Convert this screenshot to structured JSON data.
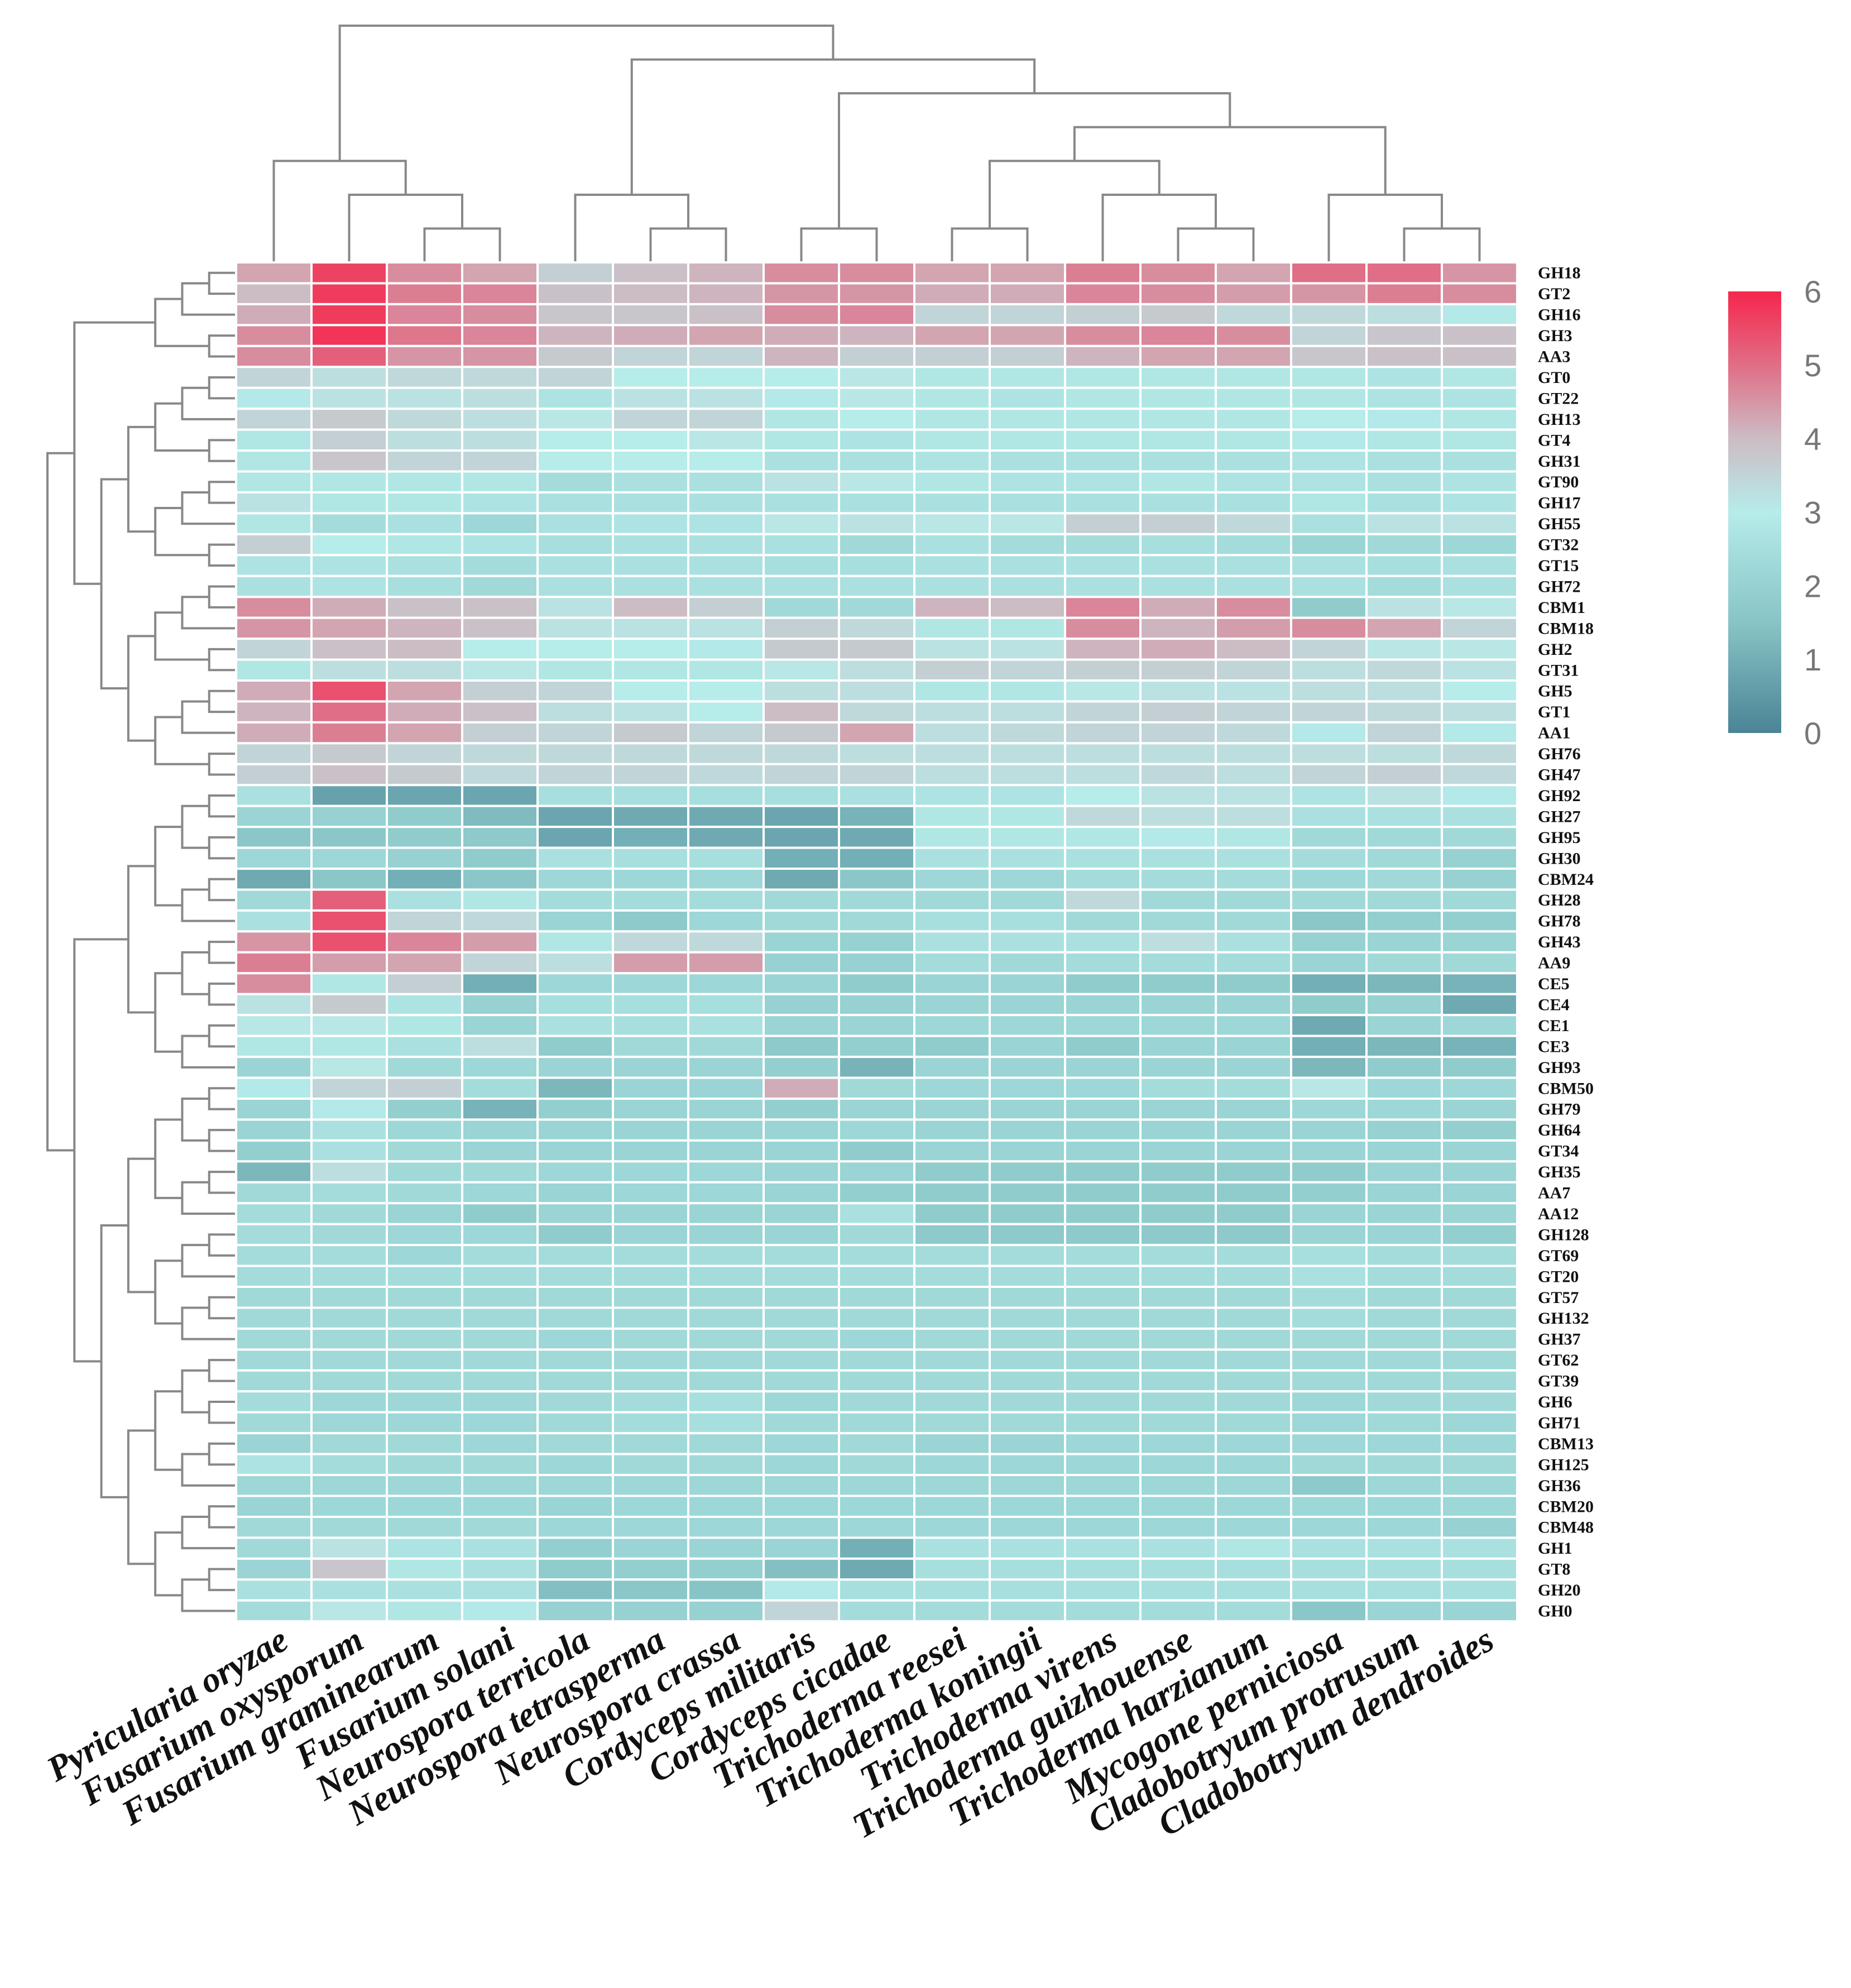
{
  "chart_data": {
    "type": "heatmap",
    "title": "",
    "columns": [
      "Pyricularia oryzae",
      "Fusarium oxysporum",
      "Fusarium graminearum",
      "Fusarium solani",
      "Neurospora terricola",
      "Neurospora tetrasperma",
      "Neurospora crassa",
      "Cordyceps militaris",
      "Cordyceps cicadae",
      "Trichoderma reesei",
      "Trichoderma koningii",
      "Trichoderma virens",
      "Trichoderma guizhouense",
      "Trichoderma harzianum",
      "Mycogone perniciosa",
      "Cladobotryum protrusum",
      "Cladobotryum dendroides"
    ],
    "rows": [
      "GH18",
      "GT2",
      "GH16",
      "GH3",
      "AA3",
      "GT0",
      "GT22",
      "GH13",
      "GT4",
      "GH31",
      "GT90",
      "GH17",
      "GH55",
      "GT32",
      "GT15",
      "GH72",
      "CBM1",
      "CBM18",
      "GH2",
      "GT31",
      "GH5",
      "GT1",
      "AA1",
      "GH76",
      "GH47",
      "GH92",
      "GH27",
      "GH95",
      "GH30",
      "CBM24",
      "GH28",
      "GH78",
      "GH43",
      "AA9",
      "CE5",
      "CE4",
      "CE1",
      "CE3",
      "GH93",
      "CBM50",
      "GH79",
      "GH64",
      "GT34",
      "GH35",
      "AA7",
      "AA12",
      "GH128",
      "GT69",
      "GT20",
      "GT57",
      "GH132",
      "GH37",
      "GT62",
      "GT39",
      "GH6",
      "GH71",
      "CBM13",
      "GH125",
      "GH36",
      "CBM20",
      "CBM48",
      "GH1",
      "GT8",
      "GH20",
      "GH0"
    ],
    "values": [
      [
        4.3,
        5.6,
        4.6,
        4.3,
        3.6,
        3.9,
        4.1,
        4.6,
        4.6,
        4.3,
        4.3,
        4.8,
        4.6,
        4.3,
        5.0,
        5.0,
        4.5
      ],
      [
        4.0,
        5.7,
        4.8,
        4.7,
        3.9,
        4.0,
        4.1,
        4.5,
        4.5,
        4.2,
        4.2,
        4.7,
        4.6,
        4.4,
        4.5,
        4.8,
        4.6
      ],
      [
        4.2,
        5.7,
        4.7,
        4.6,
        3.8,
        3.8,
        3.9,
        4.6,
        4.7,
        3.5,
        3.5,
        3.6,
        3.7,
        3.4,
        3.4,
        3.3,
        2.9
      ],
      [
        4.6,
        5.8,
        4.9,
        4.7,
        4.1,
        4.2,
        4.3,
        4.2,
        4.1,
        4.3,
        4.3,
        4.6,
        4.7,
        4.6,
        3.5,
        3.8,
        3.9
      ],
      [
        4.6,
        5.2,
        4.5,
        4.5,
        3.7,
        3.5,
        3.5,
        4.1,
        3.6,
        3.6,
        3.6,
        4.1,
        4.3,
        4.3,
        3.8,
        3.9,
        3.9
      ],
      [
        3.5,
        3.3,
        3.4,
        3.4,
        3.5,
        3.0,
        3.0,
        3.0,
        3.1,
        2.8,
        2.8,
        2.8,
        2.8,
        2.8,
        2.8,
        2.7,
        2.8
      ],
      [
        2.9,
        3.2,
        3.2,
        3.3,
        2.7,
        3.2,
        3.2,
        2.9,
        3.1,
        2.8,
        2.7,
        2.8,
        2.8,
        2.8,
        2.8,
        2.7,
        2.7
      ],
      [
        3.5,
        3.7,
        3.4,
        3.3,
        3.1,
        3.5,
        3.5,
        2.8,
        3.0,
        2.8,
        2.8,
        2.8,
        2.8,
        2.8,
        3.0,
        2.9,
        2.8
      ],
      [
        2.8,
        3.6,
        3.3,
        3.3,
        3.0,
        3.0,
        3.1,
        2.8,
        2.7,
        2.8,
        2.8,
        2.8,
        2.8,
        2.8,
        2.9,
        2.8,
        2.8
      ],
      [
        2.8,
        3.8,
        3.5,
        3.5,
        3.0,
        3.0,
        3.0,
        2.6,
        2.6,
        2.7,
        2.6,
        2.6,
        2.6,
        2.6,
        2.7,
        2.6,
        2.6
      ],
      [
        2.8,
        2.8,
        2.8,
        2.8,
        2.4,
        2.6,
        2.6,
        3.2,
        3.1,
        2.8,
        2.7,
        2.7,
        2.8,
        2.7,
        2.7,
        2.6,
        2.7
      ],
      [
        3.2,
        2.8,
        2.8,
        2.7,
        2.6,
        2.6,
        2.6,
        2.6,
        2.6,
        2.6,
        2.6,
        2.6,
        2.6,
        2.6,
        2.8,
        2.6,
        2.7
      ],
      [
        2.8,
        2.4,
        2.6,
        2.2,
        2.6,
        2.7,
        2.7,
        3.1,
        3.2,
        3.1,
        3.1,
        3.6,
        3.6,
        3.4,
        2.6,
        3.2,
        3.2
      ],
      [
        3.6,
        3.0,
        2.8,
        2.7,
        2.5,
        2.6,
        2.6,
        2.6,
        2.3,
        2.6,
        2.4,
        2.4,
        2.5,
        2.4,
        2.1,
        2.3,
        2.2
      ],
      [
        2.7,
        2.7,
        2.6,
        2.4,
        2.6,
        2.6,
        2.6,
        2.5,
        2.5,
        2.6,
        2.6,
        2.6,
        2.6,
        2.6,
        2.6,
        2.5,
        2.6
      ],
      [
        2.6,
        2.7,
        2.5,
        2.3,
        2.6,
        2.6,
        2.6,
        2.6,
        2.6,
        2.6,
        2.6,
        2.6,
        2.6,
        2.6,
        2.6,
        2.4,
        2.6
      ],
      [
        4.6,
        4.2,
        3.9,
        3.9,
        3.2,
        4.0,
        3.6,
        2.3,
        2.3,
        4.1,
        4.0,
        4.7,
        4.2,
        4.6,
        1.8,
        3.2,
        3.1
      ],
      [
        4.5,
        4.3,
        4.1,
        3.9,
        3.2,
        3.2,
        3.2,
        3.6,
        3.4,
        2.8,
        2.8,
        4.6,
        4.1,
        4.4,
        4.6,
        4.3,
        3.5
      ],
      [
        3.5,
        3.9,
        4.0,
        3.0,
        3.0,
        3.0,
        2.9,
        3.7,
        3.7,
        3.2,
        3.2,
        4.1,
        4.2,
        4.0,
        3.5,
        3.1,
        3.1
      ],
      [
        2.8,
        3.3,
        3.3,
        3.1,
        2.8,
        2.8,
        2.8,
        3.1,
        3.3,
        3.6,
        3.5,
        3.6,
        3.6,
        3.5,
        3.3,
        3.4,
        3.2
      ],
      [
        4.2,
        5.4,
        4.3,
        3.6,
        3.5,
        3.0,
        3.0,
        3.3,
        3.3,
        2.8,
        2.8,
        3.1,
        3.2,
        3.2,
        3.3,
        3.3,
        3.0
      ],
      [
        4.1,
        5.0,
        4.2,
        3.9,
        3.3,
        3.2,
        3.0,
        4.0,
        3.4,
        3.3,
        3.3,
        3.5,
        3.6,
        3.5,
        3.5,
        3.4,
        3.3
      ],
      [
        4.2,
        4.8,
        4.3,
        3.6,
        3.5,
        3.7,
        3.5,
        3.7,
        4.3,
        3.3,
        3.4,
        3.5,
        3.5,
        3.4,
        2.9,
        3.5,
        2.9
      ],
      [
        3.5,
        3.7,
        3.5,
        3.4,
        3.4,
        3.4,
        3.4,
        3.4,
        3.3,
        3.3,
        3.3,
        3.3,
        3.3,
        3.3,
        3.3,
        3.3,
        3.4
      ],
      [
        3.6,
        3.9,
        3.7,
        3.4,
        3.5,
        3.5,
        3.4,
        3.5,
        3.5,
        3.3,
        3.3,
        3.3,
        3.4,
        3.3,
        3.5,
        3.6,
        3.4
      ],
      [
        2.6,
        0.7,
        0.8,
        0.8,
        2.5,
        2.5,
        2.5,
        2.5,
        2.6,
        2.7,
        2.7,
        3.0,
        3.2,
        3.2,
        2.7,
        3.2,
        2.9
      ],
      [
        2.1,
        2.0,
        1.8,
        1.3,
        0.8,
        0.9,
        0.9,
        0.8,
        1.1,
        2.8,
        2.8,
        3.4,
        3.3,
        3.3,
        2.6,
        2.6,
        2.6
      ],
      [
        1.6,
        1.6,
        1.8,
        1.7,
        0.8,
        1.0,
        0.9,
        0.8,
        0.9,
        2.8,
        2.8,
        2.8,
        2.9,
        2.8,
        2.3,
        2.3,
        2.3
      ],
      [
        2.2,
        2.2,
        2.0,
        1.8,
        2.6,
        2.5,
        2.5,
        1.0,
        1.0,
        2.6,
        2.6,
        2.6,
        2.6,
        2.6,
        2.4,
        2.3,
        2.0
      ],
      [
        0.9,
        1.6,
        1.0,
        1.6,
        2.2,
        2.2,
        2.2,
        0.9,
        1.6,
        2.2,
        2.2,
        2.4,
        2.4,
        2.4,
        2.2,
        2.3,
        2.0
      ],
      [
        2.3,
        5.2,
        2.6,
        2.8,
        2.4,
        2.4,
        2.4,
        2.3,
        2.3,
        2.3,
        2.3,
        3.4,
        2.3,
        2.3,
        2.3,
        2.3,
        2.3
      ],
      [
        2.6,
        5.4,
        3.5,
        3.4,
        2.1,
        1.7,
        2.2,
        2.3,
        2.3,
        2.5,
        2.5,
        2.3,
        2.3,
        2.3,
        1.6,
        1.9,
        1.9
      ],
      [
        4.5,
        5.4,
        4.7,
        4.4,
        2.8,
        3.4,
        3.4,
        2.1,
        2.0,
        2.6,
        2.6,
        2.6,
        3.3,
        2.6,
        2.0,
        2.1,
        2.1
      ],
      [
        4.8,
        4.4,
        4.3,
        3.5,
        3.3,
        4.4,
        4.4,
        2.0,
        2.0,
        2.4,
        2.3,
        2.4,
        2.4,
        2.4,
        2.1,
        2.3,
        2.3
      ],
      [
        4.6,
        2.8,
        3.6,
        1.0,
        2.2,
        2.2,
        2.2,
        2.1,
        1.8,
        2.1,
        2.1,
        1.8,
        1.8,
        1.8,
        1.0,
        1.2,
        1.1
      ],
      [
        3.2,
        3.7,
        2.7,
        2.0,
        2.5,
        2.5,
        2.5,
        2.0,
        2.0,
        2.1,
        2.1,
        2.1,
        2.1,
        2.1,
        1.8,
        2.0,
        0.9
      ],
      [
        3.1,
        3.1,
        2.8,
        2.1,
        2.6,
        2.5,
        2.6,
        2.1,
        2.1,
        2.2,
        2.2,
        2.2,
        2.2,
        2.2,
        0.9,
        2.1,
        2.2
      ],
      [
        2.8,
        2.8,
        2.6,
        3.3,
        1.8,
        2.3,
        2.3,
        1.7,
        1.9,
        1.8,
        2.1,
        1.8,
        2.1,
        2.1,
        1.0,
        1.2,
        1.1
      ],
      [
        2.1,
        3.1,
        2.3,
        2.2,
        2.1,
        2.1,
        2.1,
        1.9,
        1.1,
        2.1,
        2.1,
        2.1,
        2.1,
        2.1,
        1.2,
        1.8,
        1.8
      ],
      [
        2.9,
        3.5,
        3.6,
        2.4,
        1.2,
        2.1,
        2.1,
        4.2,
        2.3,
        2.2,
        2.2,
        2.2,
        2.4,
        2.4,
        3.1,
        2.2,
        2.2
      ],
      [
        2.1,
        2.9,
        1.9,
        1.1,
        1.9,
        2.1,
        2.1,
        1.9,
        2.1,
        2.1,
        2.1,
        2.1,
        2.1,
        2.1,
        2.2,
        2.2,
        2.1
      ],
      [
        2.1,
        2.6,
        2.2,
        2.1,
        2.1,
        2.1,
        2.1,
        2.1,
        2.2,
        2.1,
        2.1,
        2.1,
        2.1,
        2.1,
        2.1,
        2.0,
        1.9
      ],
      [
        1.9,
        2.6,
        2.3,
        2.1,
        2.1,
        2.1,
        2.1,
        2.1,
        1.8,
        2.1,
        2.1,
        2.1,
        2.1,
        2.1,
        2.1,
        2.1,
        2.1
      ],
      [
        1.2,
        3.3,
        2.3,
        2.3,
        2.2,
        2.2,
        2.2,
        2.1,
        2.1,
        1.8,
        1.8,
        1.8,
        1.8,
        1.8,
        1.8,
        2.1,
        2.1
      ],
      [
        2.3,
        2.4,
        2.3,
        2.2,
        2.1,
        2.2,
        2.2,
        2.1,
        1.9,
        1.8,
        1.8,
        1.8,
        1.8,
        1.8,
        1.9,
        2.1,
        2.1
      ],
      [
        2.4,
        2.3,
        2.1,
        1.8,
        2.1,
        2.1,
        2.1,
        2.1,
        2.6,
        1.8,
        1.8,
        1.8,
        1.8,
        1.8,
        2.1,
        2.1,
        2.1
      ],
      [
        2.4,
        2.3,
        2.2,
        2.2,
        1.8,
        2.1,
        2.1,
        2.1,
        2.3,
        1.7,
        1.7,
        1.7,
        1.7,
        1.7,
        2.1,
        2.1,
        1.9
      ],
      [
        2.4,
        2.4,
        2.2,
        2.4,
        2.4,
        2.4,
        2.4,
        2.4,
        2.4,
        2.4,
        2.4,
        2.4,
        2.4,
        2.4,
        2.5,
        2.4,
        2.4
      ],
      [
        2.4,
        2.4,
        2.4,
        2.4,
        2.4,
        2.4,
        2.4,
        2.4,
        2.4,
        2.4,
        2.4,
        2.4,
        2.4,
        2.4,
        2.6,
        2.4,
        2.4
      ],
      [
        2.3,
        2.3,
        2.3,
        2.3,
        2.3,
        2.3,
        2.3,
        2.3,
        2.3,
        2.3,
        2.3,
        2.3,
        2.3,
        2.3,
        2.4,
        2.3,
        2.3
      ],
      [
        2.3,
        2.3,
        2.3,
        2.3,
        2.3,
        2.3,
        2.3,
        2.3,
        2.3,
        2.3,
        2.3,
        2.3,
        2.3,
        2.3,
        2.4,
        2.3,
        2.3
      ],
      [
        2.3,
        2.3,
        2.3,
        2.3,
        2.2,
        2.3,
        2.3,
        2.3,
        2.2,
        2.3,
        2.3,
        2.3,
        2.3,
        2.3,
        2.3,
        2.3,
        2.3
      ],
      [
        2.3,
        2.3,
        2.3,
        2.3,
        2.3,
        2.3,
        2.3,
        2.3,
        2.3,
        2.3,
        2.3,
        2.3,
        2.3,
        2.3,
        2.3,
        2.3,
        2.3
      ],
      [
        2.3,
        2.3,
        2.3,
        2.3,
        2.3,
        2.3,
        2.3,
        2.3,
        2.3,
        2.3,
        2.3,
        2.3,
        2.3,
        2.3,
        2.3,
        2.3,
        2.3
      ],
      [
        2.4,
        2.2,
        2.2,
        2.2,
        2.3,
        2.4,
        2.5,
        2.2,
        2.3,
        2.3,
        2.3,
        2.3,
        2.3,
        2.3,
        2.2,
        2.3,
        2.3
      ],
      [
        2.3,
        2.2,
        2.2,
        2.2,
        2.3,
        2.4,
        2.5,
        2.3,
        2.3,
        2.3,
        2.3,
        2.3,
        2.3,
        2.3,
        2.2,
        2.3,
        2.2
      ],
      [
        2.1,
        2.3,
        2.3,
        2.2,
        2.3,
        2.3,
        2.3,
        2.2,
        2.3,
        2.1,
        2.1,
        2.2,
        2.2,
        2.2,
        2.2,
        2.2,
        2.2
      ],
      [
        2.7,
        2.4,
        2.3,
        2.3,
        2.2,
        2.3,
        2.3,
        2.2,
        2.3,
        2.2,
        2.2,
        2.2,
        2.2,
        2.2,
        2.3,
        2.3,
        2.3
      ],
      [
        2.2,
        2.2,
        2.2,
        2.2,
        2.2,
        2.2,
        2.2,
        2.2,
        2.2,
        2.2,
        2.2,
        2.2,
        2.2,
        2.2,
        1.7,
        2.2,
        2.2
      ],
      [
        2.1,
        2.2,
        2.2,
        2.2,
        2.1,
        2.2,
        2.2,
        2.2,
        2.2,
        2.2,
        2.2,
        2.2,
        2.2,
        2.2,
        2.2,
        2.2,
        2.2
      ],
      [
        2.3,
        2.3,
        2.3,
        2.3,
        2.2,
        2.2,
        2.2,
        2.2,
        2.2,
        2.2,
        2.2,
        2.2,
        2.2,
        2.2,
        2.2,
        2.2,
        2.0
      ],
      [
        2.3,
        3.2,
        2.7,
        2.6,
        1.9,
        2.1,
        2.1,
        2.1,
        1.0,
        2.6,
        2.6,
        2.6,
        2.6,
        2.8,
        2.6,
        2.6,
        2.6
      ],
      [
        2.1,
        3.8,
        2.8,
        2.6,
        1.8,
        1.9,
        1.9,
        1.4,
        0.9,
        2.5,
        2.5,
        2.5,
        2.5,
        2.5,
        2.5,
        2.5,
        2.5
      ],
      [
        2.6,
        2.6,
        2.6,
        2.6,
        1.4,
        1.6,
        1.5,
        2.9,
        2.5,
        2.5,
        2.5,
        2.5,
        2.5,
        2.5,
        2.5,
        2.5,
        2.5
      ],
      [
        2.4,
        3.1,
        2.8,
        2.9,
        2.0,
        2.0,
        2.0,
        3.5,
        2.4,
        2.4,
        2.4,
        2.4,
        2.4,
        2.4,
        1.6,
        2.1,
        2.1
      ]
    ],
    "colorbar": {
      "min": 0,
      "max": 6,
      "ticks": [
        "0",
        "1",
        "2",
        "3",
        "4",
        "5",
        "6"
      ],
      "stops": [
        {
          "value": 0,
          "color": "#4a8496"
        },
        {
          "value": 1.5,
          "color": "#88c4c6"
        },
        {
          "value": 3,
          "color": "#b6ecea"
        },
        {
          "value": 4,
          "color": "#ccbcc4"
        },
        {
          "value": 5,
          "color": "#e06e86"
        },
        {
          "value": 6,
          "color": "#f6264c"
        }
      ]
    },
    "legend_position": "top-right",
    "column_dendrogram": "top",
    "row_dendrogram": "left",
    "cell_border_color": "#ffffff",
    "dendrogram_color": "#888888"
  }
}
